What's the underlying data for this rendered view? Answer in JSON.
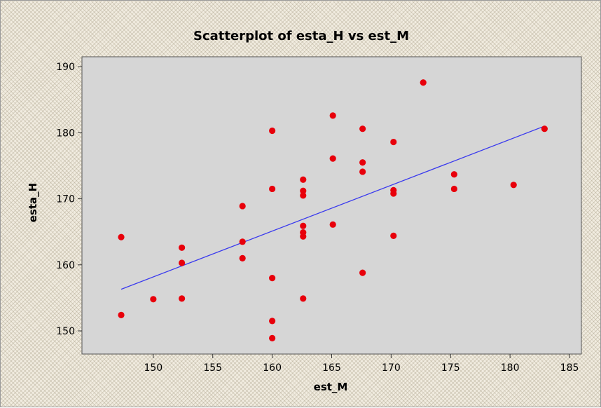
{
  "chart_data": {
    "type": "scatter",
    "title": "Scatterplot of esta_H vs est_M",
    "xlabel": "est_M",
    "ylabel": "esta_H",
    "xlim": [
      144,
      186
    ],
    "ylim": [
      146.5,
      191.5
    ],
    "xticks": [
      150,
      155,
      160,
      165,
      170,
      175,
      180,
      185
    ],
    "yticks": [
      150,
      160,
      170,
      180,
      190
    ],
    "grid": false,
    "point_color": "#e8000b",
    "line_color": "#3a3aee",
    "plot_background": "#d6d6d6",
    "points": [
      {
        "x": 147.3,
        "y": 164.2
      },
      {
        "x": 147.3,
        "y": 152.4
      },
      {
        "x": 150.0,
        "y": 154.8
      },
      {
        "x": 152.4,
        "y": 162.6
      },
      {
        "x": 152.4,
        "y": 160.3
      },
      {
        "x": 152.4,
        "y": 154.9
      },
      {
        "x": 157.5,
        "y": 168.9
      },
      {
        "x": 157.5,
        "y": 163.5
      },
      {
        "x": 157.5,
        "y": 161.0
      },
      {
        "x": 160.0,
        "y": 180.3
      },
      {
        "x": 160.0,
        "y": 171.5
      },
      {
        "x": 160.0,
        "y": 158.0
      },
      {
        "x": 160.0,
        "y": 151.5
      },
      {
        "x": 160.0,
        "y": 148.9
      },
      {
        "x": 162.6,
        "y": 172.9
      },
      {
        "x": 162.6,
        "y": 171.2
      },
      {
        "x": 162.6,
        "y": 170.5
      },
      {
        "x": 162.6,
        "y": 165.9
      },
      {
        "x": 162.6,
        "y": 164.9
      },
      {
        "x": 162.6,
        "y": 164.3
      },
      {
        "x": 162.6,
        "y": 154.9
      },
      {
        "x": 165.1,
        "y": 182.6
      },
      {
        "x": 165.1,
        "y": 176.1
      },
      {
        "x": 165.1,
        "y": 166.1
      },
      {
        "x": 167.6,
        "y": 180.6
      },
      {
        "x": 167.6,
        "y": 175.5
      },
      {
        "x": 167.6,
        "y": 174.1
      },
      {
        "x": 167.6,
        "y": 158.8
      },
      {
        "x": 170.2,
        "y": 178.6
      },
      {
        "x": 170.2,
        "y": 171.3
      },
      {
        "x": 170.2,
        "y": 170.8
      },
      {
        "x": 170.2,
        "y": 164.4
      },
      {
        "x": 172.7,
        "y": 187.6
      },
      {
        "x": 175.3,
        "y": 173.7
      },
      {
        "x": 175.3,
        "y": 171.5
      },
      {
        "x": 180.3,
        "y": 172.1
      },
      {
        "x": 182.9,
        "y": 180.6
      }
    ],
    "regression_line": {
      "x": [
        147.3,
        182.9
      ],
      "y": [
        156.3,
        181.0
      ]
    }
  }
}
